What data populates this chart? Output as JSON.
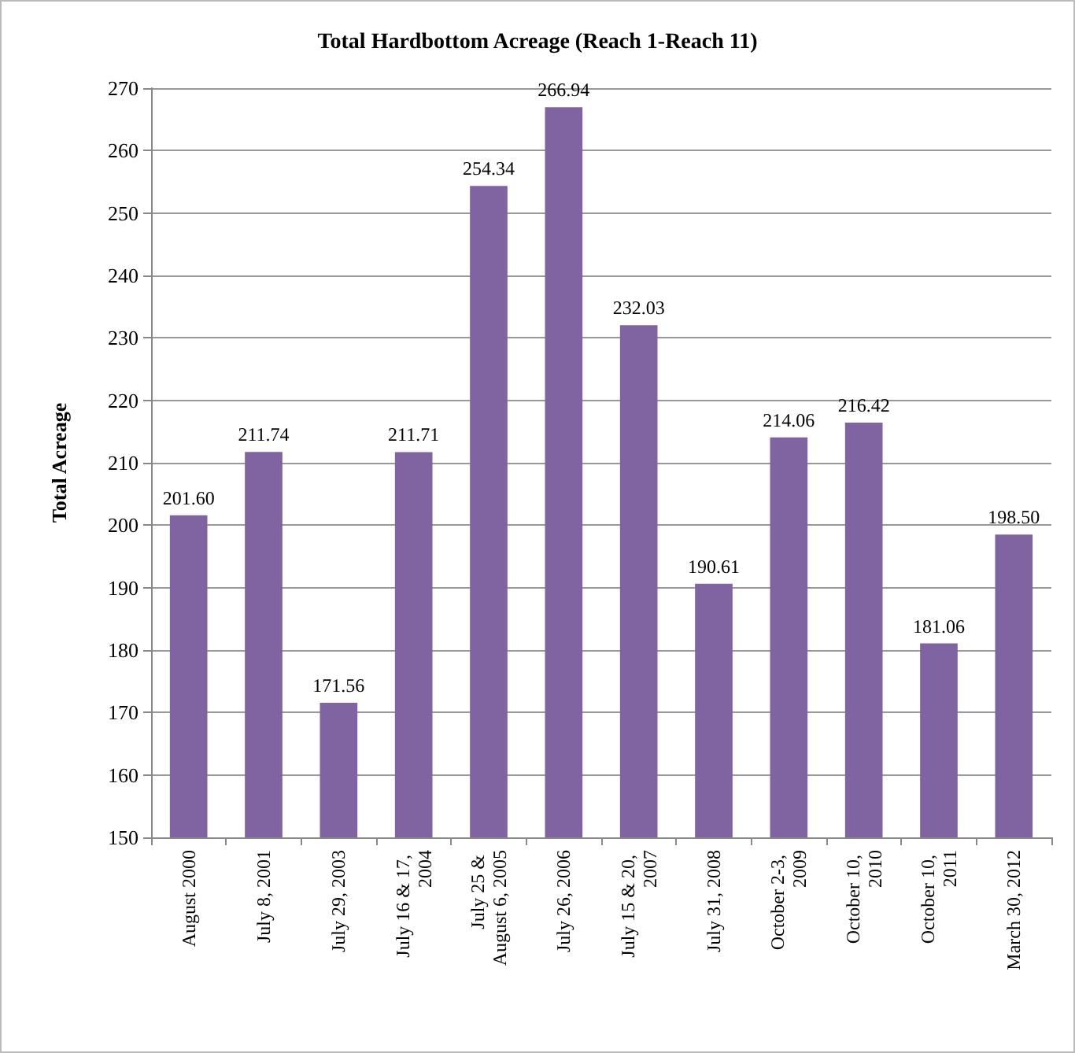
{
  "chart_data": {
    "type": "bar",
    "title": "Total Hardbottom Acreage (Reach 1-Reach 11)",
    "ylabel": "Total Acreage",
    "categories": [
      "August 2000",
      "July 8, 2001",
      "July 29, 2003",
      "July 16 & 17, 2004",
      "July 25 & August 6, 2005",
      "July 26, 2006",
      "July 15 & 20, 2007",
      "July 31, 2008",
      "October 2-3, 2009",
      "October 10, 2010",
      "October 10, 2011",
      "March 30, 2012"
    ],
    "values": [
      201.6,
      211.74,
      171.56,
      211.71,
      254.34,
      266.94,
      232.03,
      190.61,
      214.06,
      216.42,
      181.06,
      198.5
    ],
    "value_labels": [
      "201.60",
      "211.74",
      "171.56",
      "211.71",
      "254.34",
      "266.94",
      "232.03",
      "190.61",
      "214.06",
      "216.42",
      "181.06",
      "198.50"
    ],
    "color": "#8064a2",
    "ylim": [
      150,
      270
    ],
    "yticks": [
      150,
      160,
      170,
      180,
      190,
      200,
      210,
      220,
      230,
      240,
      250,
      260,
      270
    ],
    "grid": true
  }
}
